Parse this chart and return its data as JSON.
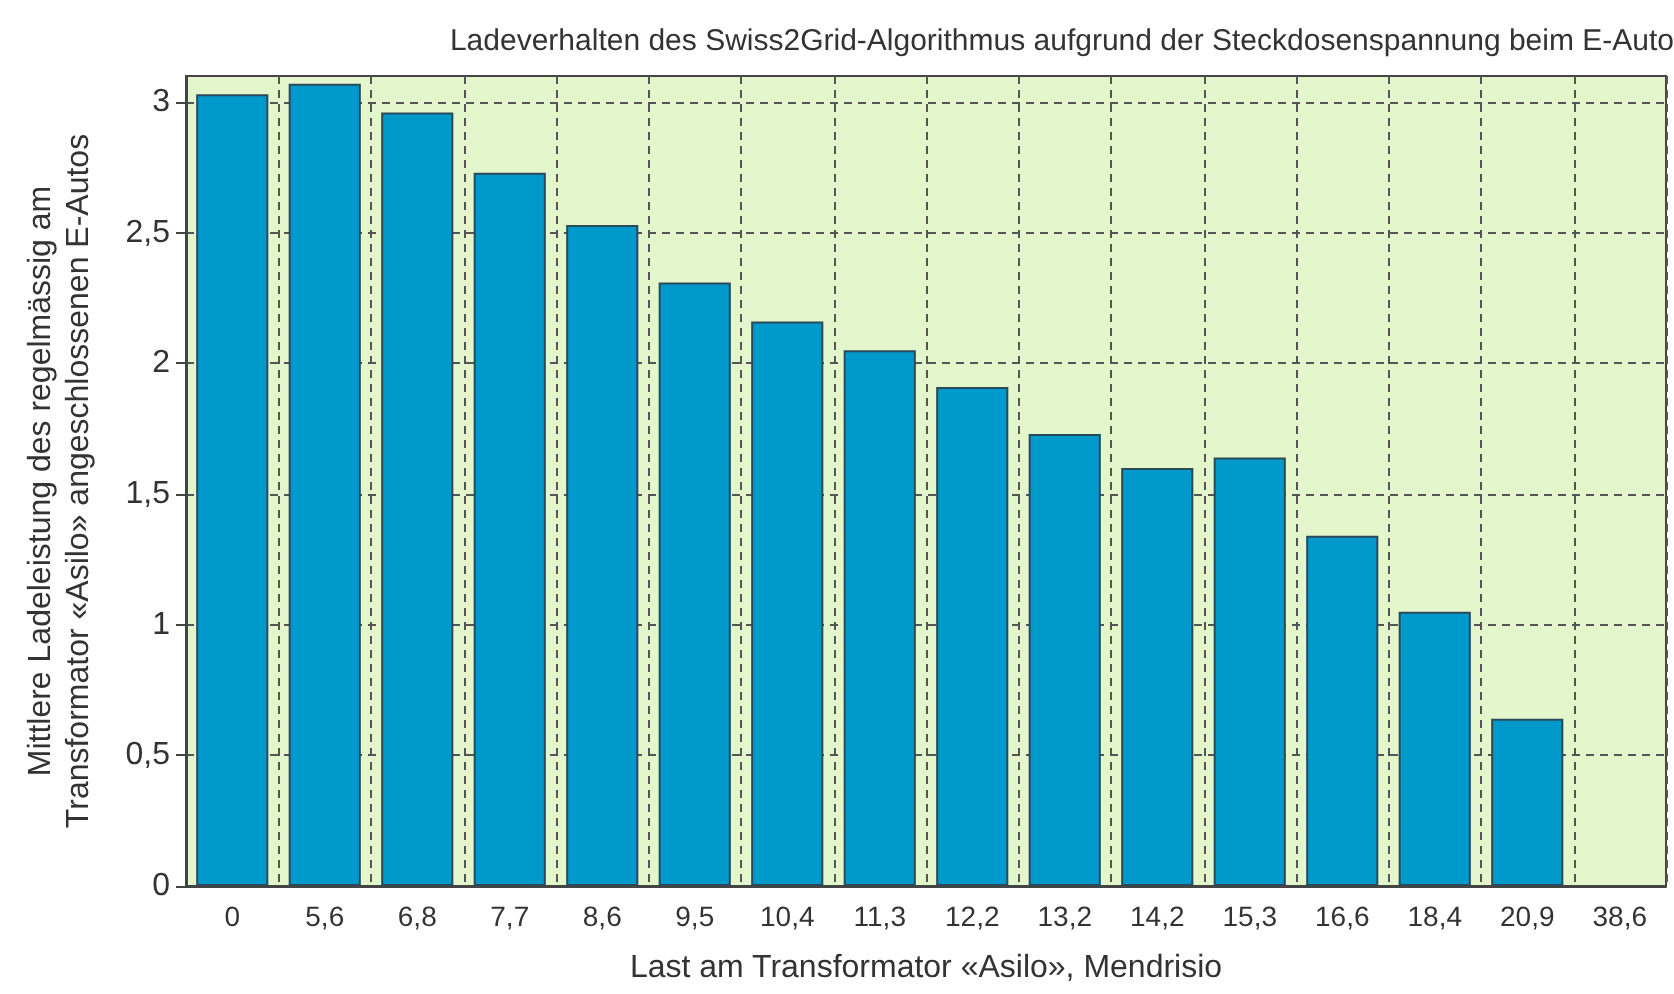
{
  "chart_data": {
    "type": "bar",
    "title": "Ladeverhalten des Swiss2Grid-Algorithmus aufgrund der Steckdosenspannung beim E-Auto",
    "xlabel": "Last am Transformator «Asilo», Mendrisio",
    "ylabel": "Mittlere Ladeleistung des regelmässig am\nTransformator «Asilo» angeschlossenen E-Autos",
    "categories": [
      "0",
      "5,6",
      "6,8",
      "7,7",
      "8,6",
      "9,5",
      "10,4",
      "11,3",
      "12,2",
      "13,2",
      "14,2",
      "15,3",
      "16,6",
      "18,4",
      "20,9",
      "38,6"
    ],
    "values": [
      3.03,
      3.07,
      2.96,
      2.73,
      2.53,
      2.31,
      2.16,
      2.05,
      1.91,
      1.73,
      1.6,
      1.64,
      1.34,
      1.05,
      0.64,
      null
    ],
    "color": "#0099cc",
    "ylim": [
      0,
      3.1
    ],
    "yticks": [
      {
        "value": 0,
        "label": "0"
      },
      {
        "value": 0.5,
        "label": "0,5"
      },
      {
        "value": 1,
        "label": "1"
      },
      {
        "value": 1.5,
        "label": "1,5"
      },
      {
        "value": 2,
        "label": "2"
      },
      {
        "value": 2.5,
        "label": "2,5"
      },
      {
        "value": 3,
        "label": "3"
      }
    ],
    "grid": true
  }
}
